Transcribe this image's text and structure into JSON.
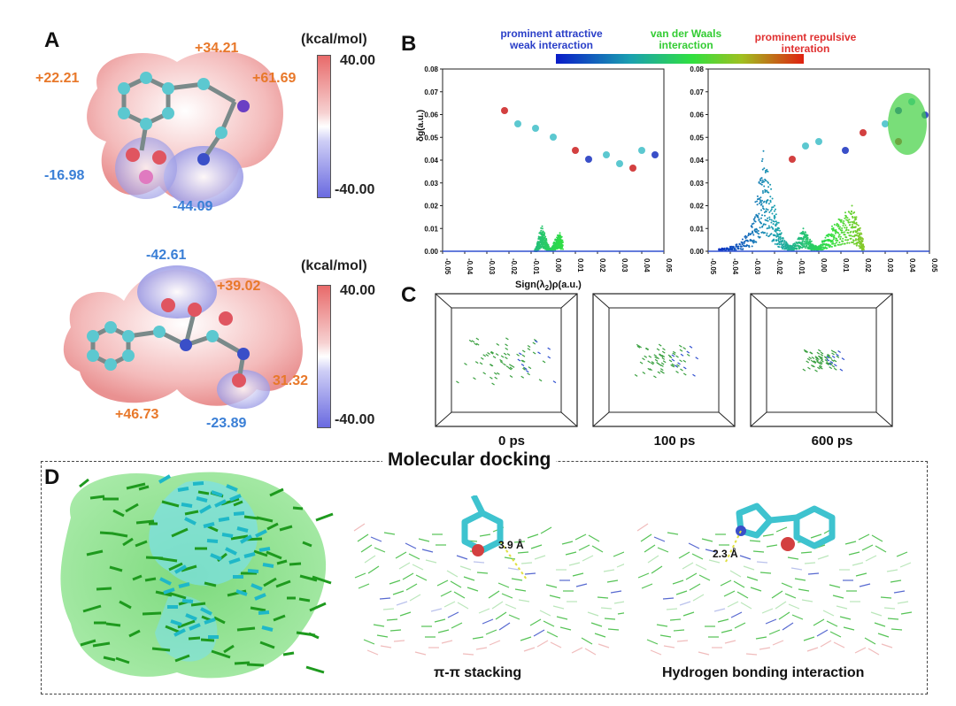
{
  "panels": {
    "A": "A",
    "B": "B",
    "C": "C",
    "D": "D"
  },
  "esp": {
    "unit": "(kcal/mol)",
    "colorbar_max": "40.00",
    "colorbar_min": "-40.00",
    "top": {
      "values": [
        "+34.21",
        "+22.21",
        "+61.69",
        "-16.98",
        "-44.09"
      ]
    },
    "bottom": {
      "values": [
        "-42.61",
        "+39.02",
        "31.32",
        "+46.73",
        "-23.89"
      ]
    }
  },
  "igm": {
    "legend": {
      "attractive": [
        "prominent attractive",
        "weak interaction"
      ],
      "vdw": [
        "van der Waals",
        "interaction"
      ],
      "repulsive": [
        "prominent repulsive",
        "interation"
      ]
    },
    "ylabel": "δg(a.u.)",
    "xlabel": "Sign(λ2)ρ(a.u.)",
    "xlabel_parts": [
      "Sign(λ",
      "2",
      ")ρ(a.u.)"
    ],
    "yticks": [
      "0.08",
      "0.07",
      "0.06",
      "0.05",
      "0.04",
      "0.03",
      "0.02",
      "0.01",
      "0.00"
    ],
    "xticks": [
      "-0.05",
      "-0.04",
      "-0.03",
      "-0.02",
      "-0.01",
      "0.00",
      "0.01",
      "0.02",
      "0.03",
      "0.04",
      "0.05"
    ]
  },
  "chart_data": [
    {
      "type": "scatter",
      "xlabel": "Sign(λ2)ρ(a.u.)",
      "ylabel": "δg(a.u.)",
      "xlim": [
        -0.05,
        0.05
      ],
      "ylim": [
        0,
        0.08
      ],
      "series": [
        {
          "x": [
            -0.008,
            -0.007,
            -0.006,
            -0.005,
            -0.004,
            -0.003,
            -0.002,
            0.0,
            0.001,
            0.002,
            0.003,
            0.004
          ],
          "y": [
            0.0,
            0.003,
            0.008,
            0.011,
            0.007,
            0.004,
            0.001,
            0.002,
            0.005,
            0.007,
            0.008,
            0.004
          ]
        }
      ]
    },
    {
      "type": "scatter",
      "xlabel": "",
      "ylabel": "",
      "xlim": [
        -0.05,
        0.05
      ],
      "ylim": [
        0,
        0.08
      ],
      "series": [
        {
          "x": [
            -0.045,
            -0.04,
            -0.035,
            -0.03,
            -0.027,
            -0.025,
            -0.023,
            -0.02,
            -0.018,
            -0.015,
            -0.012,
            -0.009,
            -0.007,
            -0.005,
            -0.003,
            0.0,
            0.003,
            0.006,
            0.009,
            0.012,
            0.015,
            0.017,
            0.019,
            0.02
          ],
          "y": [
            0.001,
            0.002,
            0.004,
            0.012,
            0.03,
            0.044,
            0.035,
            0.02,
            0.01,
            0.004,
            0.002,
            0.006,
            0.01,
            0.007,
            0.003,
            0.002,
            0.006,
            0.011,
            0.014,
            0.017,
            0.02,
            0.015,
            0.008,
            0.002
          ]
        }
      ]
    }
  ],
  "md": {
    "times": [
      "0 ps",
      "100 ps",
      "600 ps"
    ]
  },
  "docking": {
    "title": "Molecular docking",
    "pi_label": "π-π stacking",
    "hb_label": "Hydrogen bonding interaction",
    "pi_distance": "3.9 Å",
    "hb_distance": "2.3 Å"
  }
}
